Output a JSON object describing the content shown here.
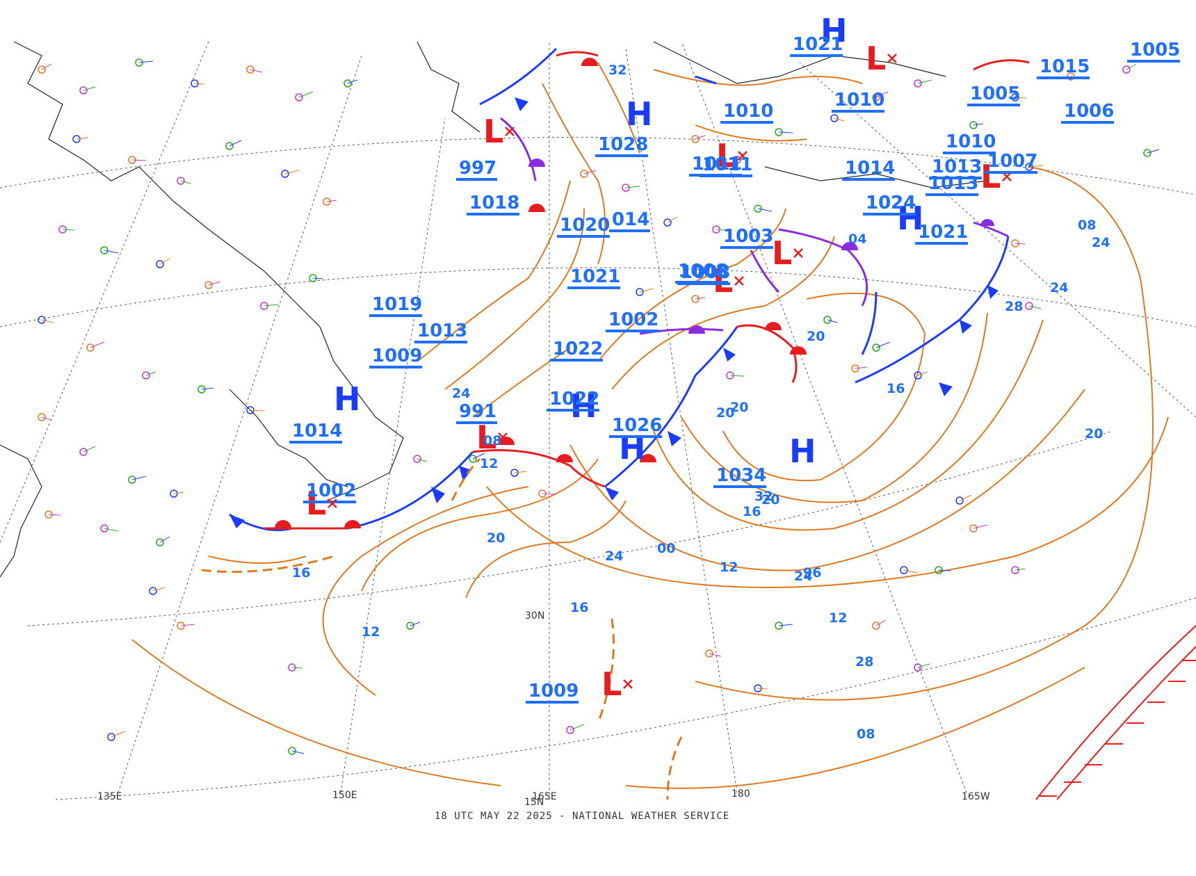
{
  "caption": "18 UTC MAY 22 2025 - NATIONAL WEATHER SERVICE",
  "colors": {
    "isobar": "#e07820",
    "cold_front": "#1a3cff",
    "warm_front": "#e81c1c",
    "occluded": "#8a2be2",
    "high": "#1a3cff",
    "low": "#e81c1c",
    "pressure_text": "#1f6fff",
    "hatch": "#e81c1c"
  },
  "grid_labels": {
    "lon_135e": "135E",
    "lon_150e": "150E",
    "lon_165e": "165E",
    "lon_180": "180",
    "lon_165w": "165W",
    "lat_30n": "30N",
    "lat_15n": "15N"
  },
  "centers": [
    {
      "type": "H",
      "value": "1028"
    },
    {
      "type": "H",
      "value": "1022"
    },
    {
      "type": "H",
      "value": "1026"
    },
    {
      "type": "H",
      "value": "1034"
    },
    {
      "type": "H",
      "value": "1014"
    },
    {
      "type": "H",
      "value": "1024"
    },
    {
      "type": "H",
      "value": "1021"
    },
    {
      "type": "L",
      "value": "997"
    },
    {
      "type": "L",
      "value": "991"
    },
    {
      "type": "L",
      "value": "1002"
    },
    {
      "type": "L",
      "value": "1009"
    },
    {
      "type": "L",
      "value": "1003"
    },
    {
      "type": "L",
      "value": "1008"
    },
    {
      "type": "L",
      "value": "1013"
    },
    {
      "type": "L",
      "value": "1010"
    },
    {
      "type": "L",
      "value": "1011"
    }
  ],
  "pressure_labels": [
    "1005",
    "1015",
    "1006",
    "1007",
    "1013",
    "1010",
    "1014",
    "1011",
    "1018",
    "1020",
    "1021",
    "1019",
    "1013",
    "1009",
    "1002",
    "1022",
    "1005",
    "1010",
    "014",
    "1008",
    "1003",
    "1021",
    "1024"
  ],
  "isobar_labels": [
    "20",
    "24",
    "28",
    "32",
    "16",
    "12",
    "08",
    "04",
    "00",
    "96",
    "20",
    "24",
    "28",
    "32",
    "24",
    "20",
    "16",
    "20",
    "20",
    "24",
    "12",
    "16",
    "08",
    "12",
    "16",
    "20",
    "24",
    "12",
    "08"
  ]
}
